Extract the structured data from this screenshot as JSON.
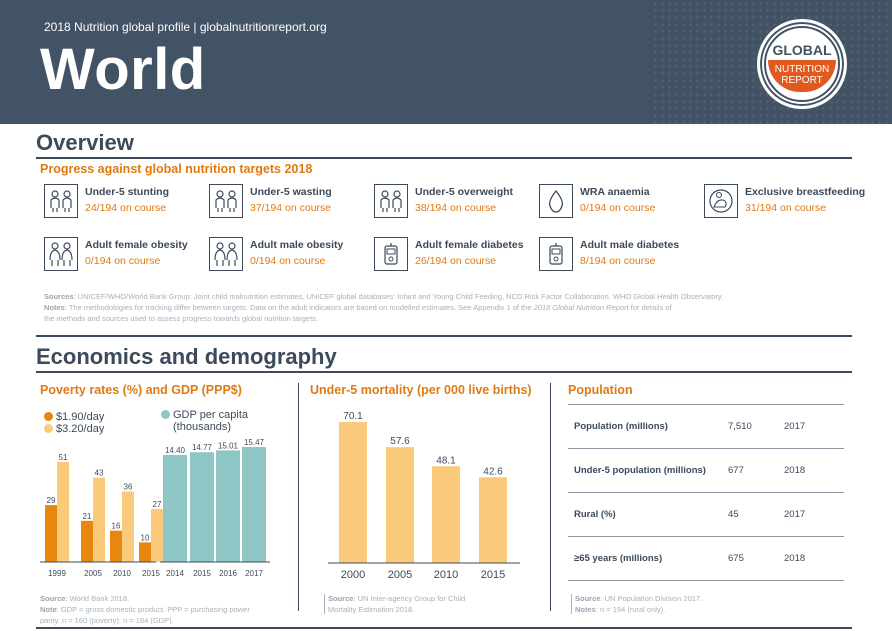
{
  "header": {
    "subtitle": "2018 Nutrition global profile | globalnutritionreport.org",
    "title": "World",
    "logo": {
      "line1": "GLOBAL",
      "line2": "NUTRITION",
      "line3": "REPORT"
    }
  },
  "overview": {
    "heading": "Overview",
    "subheading": "Progress against global nutrition targets 2018",
    "targets": [
      {
        "name": "Under-5 stunting",
        "status": "24/194 on course",
        "icon": "children-icon"
      },
      {
        "name": "Under-5 wasting",
        "status": "37/194 on course",
        "icon": "children-icon"
      },
      {
        "name": "Under-5 overweight",
        "status": "38/194 on course",
        "icon": "children-icon"
      },
      {
        "name": "WRA anaemia",
        "status": "0/194 on course",
        "icon": "blood-drop-icon"
      },
      {
        "name": "Exclusive breastfeeding",
        "status": "31/194 on course",
        "icon": "breastfeeding-icon"
      },
      {
        "name": "Adult female obesity",
        "status": "0/194 on course",
        "icon": "adults-icon"
      },
      {
        "name": "Adult male obesity",
        "status": "0/194 on course",
        "icon": "adults-icon"
      },
      {
        "name": "Adult female diabetes",
        "status": "26/194 on course",
        "icon": "glucose-meter-icon"
      },
      {
        "name": "Adult male diabetes",
        "status": "8/194 on course",
        "icon": "glucose-meter-icon"
      }
    ],
    "sources_label": "Sources",
    "sources_text": ": UNICEF/WHO/World Bank Group: Joint child malnutrition estimates, UNICEF global databases: Infant and Young Child Feeding, NCD Risk Factor Collaboration, WHO Global Health Observatory.",
    "notes_label": "Notes",
    "notes_text": ": The methodologies for tracking differ between targets. Data on the adult indicators are based on modelled estimates. See Appendix 1 of the ",
    "notes_italic": "2018 Global Nutrition Report",
    "notes_text2": " for details of",
    "notes_text3": "the methods and sources used to assess progress towards global nutrition targets."
  },
  "economics": {
    "heading": "Economics and demography",
    "poverty": {
      "title": "Poverty rates (%) and GDP (PPP$)",
      "legend_190": "$1.90/day",
      "legend_320": "$3.20/day",
      "legend_gdp_1": "GDP per capita",
      "legend_gdp_2": "(thousands)",
      "source_label": "Source",
      "source_text": ": World Bank 2018.",
      "note_label": "Note",
      "note_text": ": GDP = gross domestic product. PPP = purchasing power",
      "note_text2": "parity. n = 160 (poverty); n = 184 (GDP)."
    },
    "mortality": {
      "title": "Under-5 mortality (per 000 live births)",
      "source_label": "Source",
      "source_text": ": UN Inter-agency Group for Child",
      "source_text2": "Mortality Estimation 2018."
    },
    "population": {
      "title": "Population",
      "rows": [
        {
          "label": "Population (millions)",
          "value": "7,510",
          "year": "2017"
        },
        {
          "label": "Under-5 population (millions)",
          "value": "677",
          "year": "2018"
        },
        {
          "label": "Rural (%)",
          "value": "45",
          "year": "2017"
        },
        {
          "label": "≥65 years (millions)",
          "value": "675",
          "year": "2018"
        }
      ],
      "source_label": "Source",
      "source_text": ": UN Population Division 2017.",
      "note_label": "Notes",
      "note_text": ": n = 194 (rural only)."
    }
  },
  "colors": {
    "header_bg": "#425366",
    "orange": "#e07a12",
    "bar_dark": "#e8860f",
    "bar_light": "#fbc97a",
    "gdp": "#8fc7c7"
  },
  "chart_data": [
    {
      "type": "bar",
      "title": "Poverty rates (%)",
      "categories": [
        "1999",
        "2005",
        "2010",
        "2015"
      ],
      "series": [
        {
          "name": "$1.90/day",
          "values": [
            29,
            21,
            16,
            10
          ]
        },
        {
          "name": "$3.20/day",
          "values": [
            51,
            43,
            36,
            27
          ]
        }
      ]
    },
    {
      "type": "bar",
      "title": "GDP per capita (thousands)",
      "categories": [
        "2014",
        "2015",
        "2016",
        "2017"
      ],
      "series": [
        {
          "name": "GDP per capita (thousands)",
          "values": [
            14.4,
            14.77,
            15.01,
            15.47
          ]
        }
      ]
    },
    {
      "type": "bar",
      "title": "Under-5 mortality (per 000 live births)",
      "categories": [
        "2000",
        "2005",
        "2010",
        "2015"
      ],
      "values": [
        70.1,
        57.6,
        48.1,
        42.6
      ]
    }
  ]
}
